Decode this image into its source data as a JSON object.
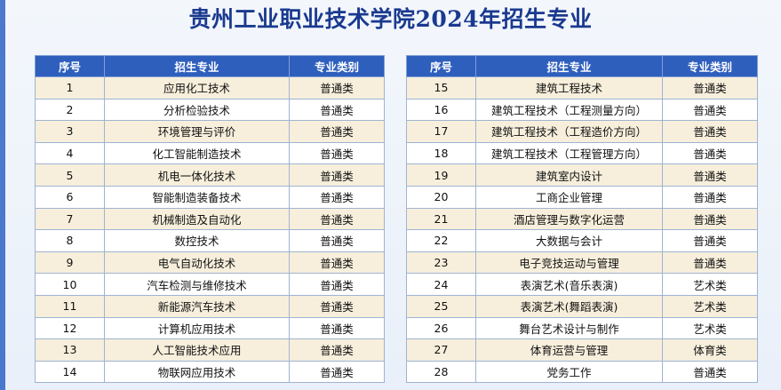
{
  "title": "贵州工业职业技术学院2024年招生专业",
  "columns": {
    "index": "序号",
    "major": "招生专业",
    "category": "专业类别"
  },
  "left_rows": [
    {
      "no": "1",
      "major": "应用化工技术",
      "category": "普通类"
    },
    {
      "no": "2",
      "major": "分析检验技术",
      "category": "普通类"
    },
    {
      "no": "3",
      "major": "环境管理与评价",
      "category": "普通类"
    },
    {
      "no": "4",
      "major": "化工智能制造技术",
      "category": "普通类"
    },
    {
      "no": "5",
      "major": "机电一体化技术",
      "category": "普通类"
    },
    {
      "no": "6",
      "major": "智能制造装备技术",
      "category": "普通类"
    },
    {
      "no": "7",
      "major": "机械制造及自动化",
      "category": "普通类"
    },
    {
      "no": "8",
      "major": "数控技术",
      "category": "普通类"
    },
    {
      "no": "9",
      "major": "电气自动化技术",
      "category": "普通类"
    },
    {
      "no": "10",
      "major": "汽车检测与维修技术",
      "category": "普通类"
    },
    {
      "no": "11",
      "major": "新能源汽车技术",
      "category": "普通类"
    },
    {
      "no": "12",
      "major": "计算机应用技术",
      "category": "普通类"
    },
    {
      "no": "13",
      "major": "人工智能技术应用",
      "category": "普通类"
    },
    {
      "no": "14",
      "major": "物联网应用技术",
      "category": "普通类"
    }
  ],
  "right_rows": [
    {
      "no": "15",
      "major": "建筑工程技术",
      "category": "普通类"
    },
    {
      "no": "16",
      "major": "建筑工程技术（工程测量方向）",
      "category": "普通类"
    },
    {
      "no": "17",
      "major": "建筑工程技术（工程造价方向）",
      "category": "普通类"
    },
    {
      "no": "18",
      "major": "建筑工程技术（工程管理方向）",
      "category": "普通类"
    },
    {
      "no": "19",
      "major": "建筑室内设计",
      "category": "普通类"
    },
    {
      "no": "20",
      "major": "工商企业管理",
      "category": "普通类"
    },
    {
      "no": "21",
      "major": "酒店管理与数字化运营",
      "category": "普通类"
    },
    {
      "no": "22",
      "major": "大数据与会计",
      "category": "普通类"
    },
    {
      "no": "23",
      "major": "电子竞技运动与管理",
      "category": "普通类"
    },
    {
      "no": "24",
      "major": "表演艺术(音乐表演)",
      "category": "艺术类"
    },
    {
      "no": "25",
      "major": "表演艺术(舞蹈表演)",
      "category": "艺术类"
    },
    {
      "no": "26",
      "major": "舞台艺术设计与制作",
      "category": "艺术类"
    },
    {
      "no": "27",
      "major": "体育运营与管理",
      "category": "体育类"
    },
    {
      "no": "28",
      "major": "党务工作",
      "category": "普通类"
    }
  ]
}
